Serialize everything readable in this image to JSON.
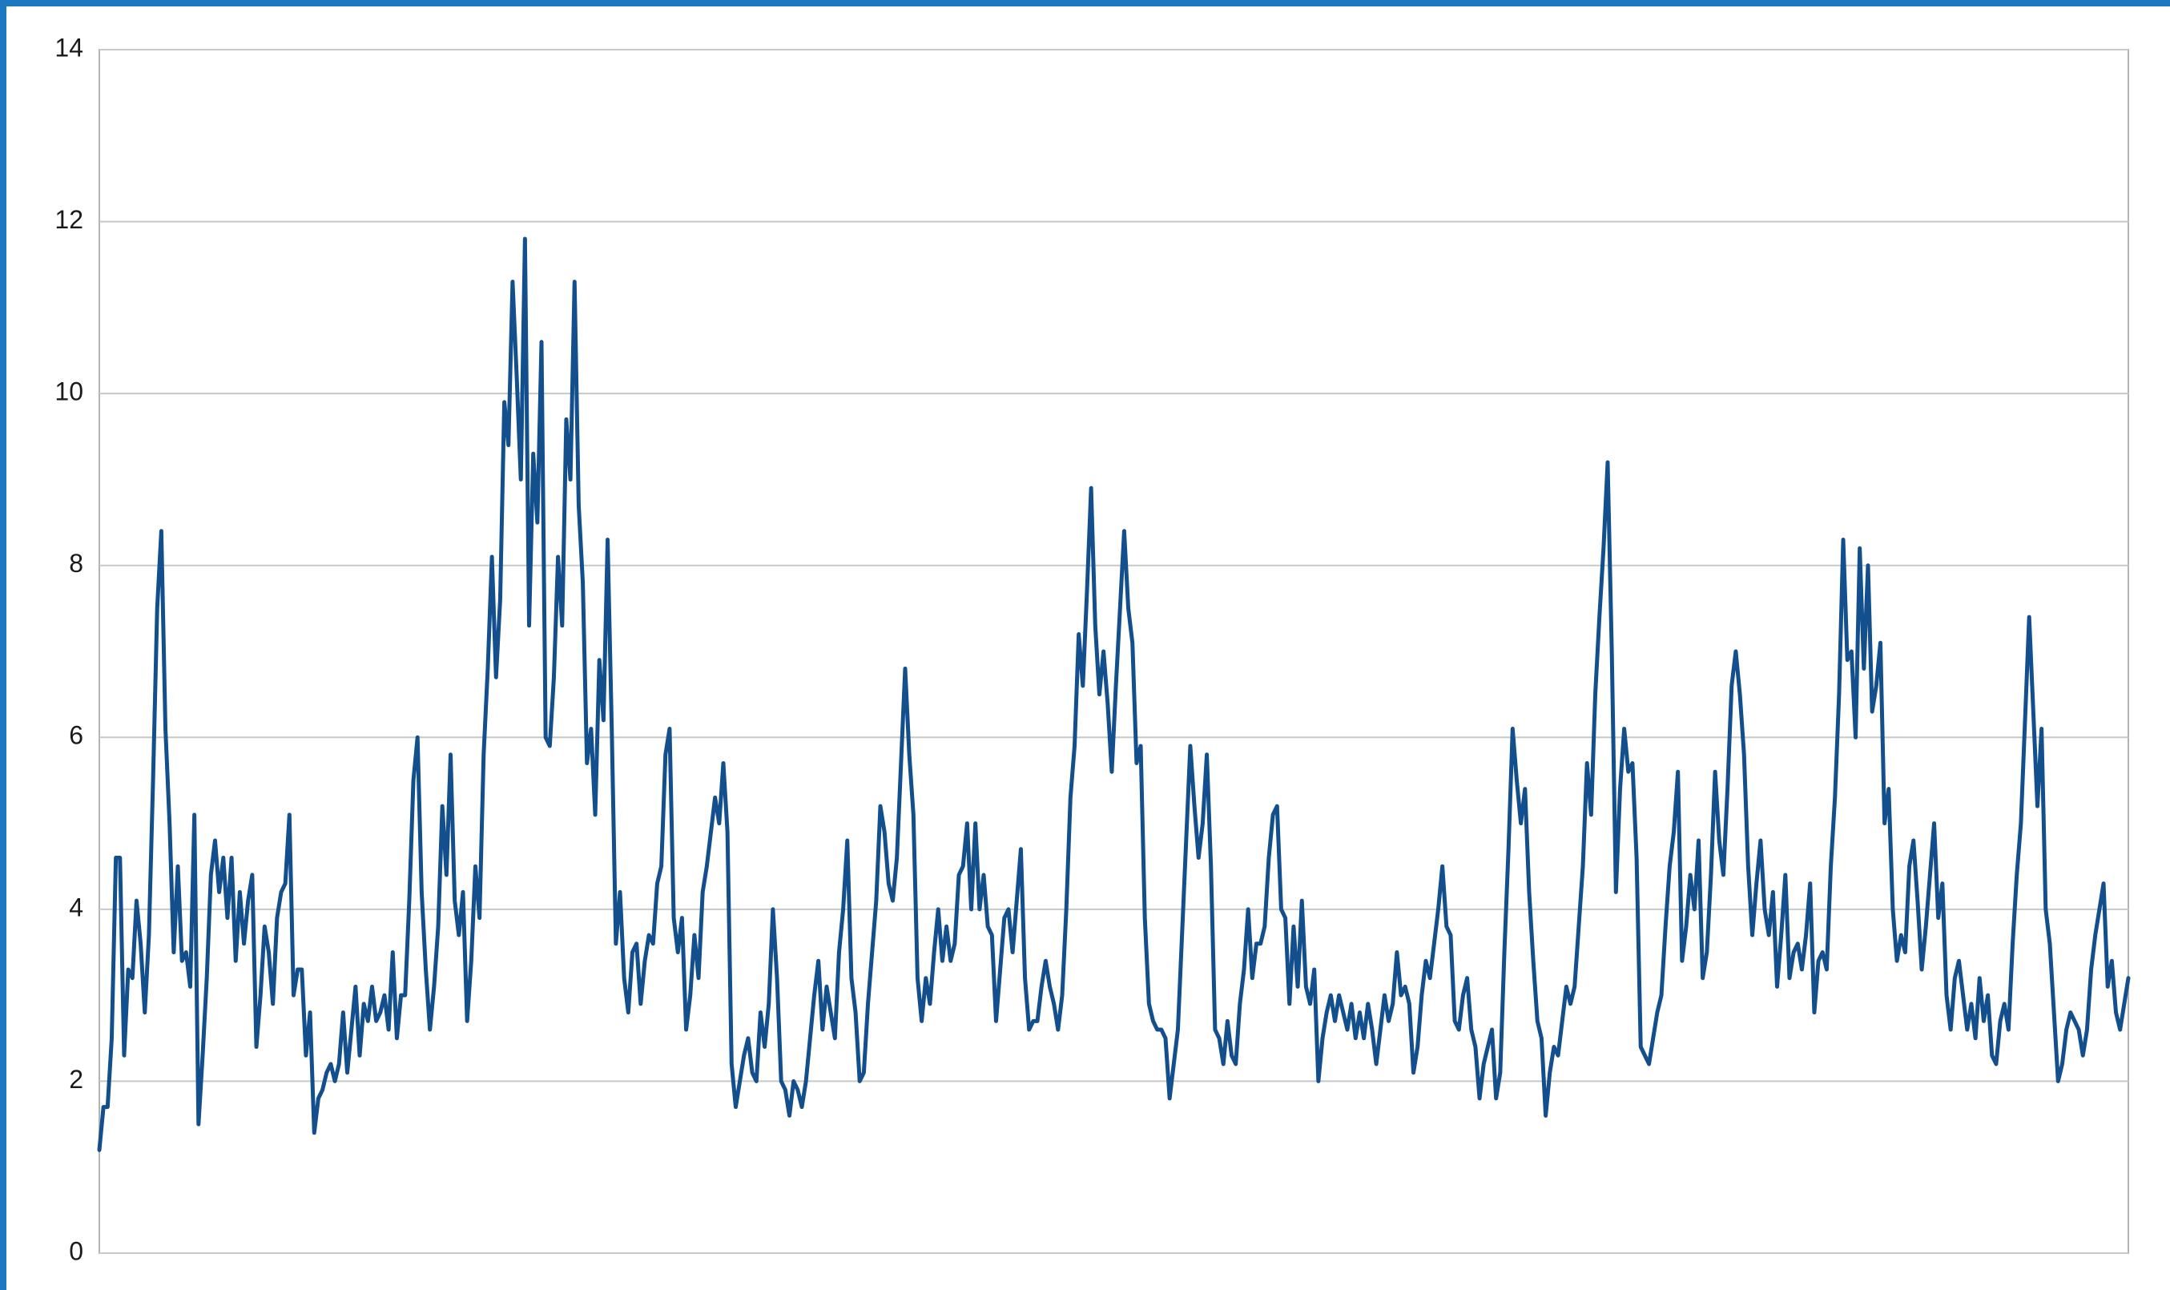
{
  "chart_data": {
    "type": "line",
    "color": "#124f8c",
    "grid": true,
    "ylim": [
      0,
      14
    ],
    "yticks": [
      0,
      2,
      4,
      6,
      8,
      10,
      12,
      14
    ],
    "values": [
      1.2,
      1.7,
      1.7,
      2.5,
      4.6,
      4.6,
      2.3,
      3.3,
      3.2,
      4.1,
      3.6,
      2.8,
      3.7,
      5.5,
      7.5,
      8.4,
      6.1,
      5,
      3.5,
      4.5,
      3.4,
      3.5,
      3.1,
      5.1,
      1.5,
      2.3,
      3.2,
      4.4,
      4.8,
      4.2,
      4.6,
      3.9,
      4.6,
      3.4,
      4.2,
      3.6,
      4.1,
      4.4,
      2.4,
      3.0,
      3.8,
      3.5,
      2.9,
      3.9,
      4.2,
      4.3,
      5.1,
      3.0,
      3.3,
      3.3,
      2.3,
      2.8,
      1.4,
      1.8,
      1.9,
      2.1,
      2.2,
      2.0,
      2.2,
      2.8,
      2.1,
      2.6,
      3.1,
      2.3,
      2.9,
      2.7,
      3.1,
      2.7,
      2.8,
      3.0,
      2.6,
      3.5,
      2.5,
      3.0,
      3.0,
      4.1,
      5.5,
      6.0,
      4.2,
      3.3,
      2.6,
      3.1,
      3.8,
      5.2,
      4.4,
      5.8,
      4.1,
      3.7,
      4.2,
      2.7,
      3.4,
      4.5,
      3.9,
      5.8,
      6.8,
      8.1,
      6.7,
      7.6,
      9.9,
      9.4,
      11.3,
      10.2,
      9.0,
      11.8,
      7.3,
      9.3,
      8.5,
      10.6,
      6.0,
      5.9,
      6.7,
      8.1,
      7.3,
      9.7,
      9.0,
      11.3,
      8.7,
      7.8,
      5.7,
      6.1,
      5.1,
      6.9,
      6.2,
      8.3,
      6.1,
      3.6,
      4.2,
      3.2,
      2.8,
      3.5,
      3.6,
      2.9,
      3.4,
      3.7,
      3.6,
      4.3,
      4.5,
      5.8,
      6.1,
      3.9,
      3.5,
      3.9,
      2.6,
      3.0,
      3.7,
      3.2,
      4.2,
      4.5,
      4.9,
      5.3,
      5.0,
      5.7,
      4.9,
      2.2,
      1.7,
      2.0,
      2.3,
      2.5,
      2.1,
      2.0,
      2.8,
      2.4,
      2.9,
      4.0,
      3.2,
      2.0,
      1.9,
      1.6,
      2.0,
      1.9,
      1.7,
      2.0,
      2.5,
      3.0,
      3.4,
      2.6,
      3.1,
      2.8,
      2.5,
      3.5,
      4.0,
      4.8,
      3.2,
      2.8,
      2.0,
      2.1,
      2.9,
      3.5,
      4.1,
      5.2,
      4.9,
      4.3,
      4.1,
      4.6,
      5.7,
      6.8,
      5.8,
      5.1,
      3.2,
      2.7,
      3.2,
      2.9,
      3.5,
      4.0,
      3.4,
      3.8,
      3.4,
      3.6,
      4.4,
      4.5,
      5.0,
      4.0,
      5.0,
      4.0,
      4.4,
      3.8,
      3.7,
      2.7,
      3.3,
      3.9,
      4.0,
      3.5,
      4.1,
      4.7,
      3.2,
      2.6,
      2.7,
      2.7,
      3.1,
      3.4,
      3.1,
      2.9,
      2.6,
      3.0,
      4.0,
      5.3,
      5.9,
      7.2,
      6.6,
      7.7,
      8.9,
      7.3,
      6.5,
      7.0,
      6.4,
      5.6,
      6.6,
      7.5,
      8.4,
      7.5,
      7.1,
      5.7,
      5.9,
      3.9,
      2.9,
      2.7,
      2.6,
      2.6,
      2.5,
      1.8,
      2.2,
      2.6,
      3.7,
      4.8,
      5.9,
      5.2,
      4.6,
      5.0,
      5.8,
      4.5,
      2.6,
      2.5,
      2.2,
      2.7,
      2.3,
      2.2,
      2.9,
      3.3,
      4.0,
      3.2,
      3.6,
      3.6,
      3.8,
      4.6,
      5.1,
      5.2,
      4.0,
      3.9,
      2.9,
      3.8,
      3.1,
      4.1,
      3.1,
      2.9,
      3.3,
      2.0,
      2.5,
      2.8,
      3.0,
      2.7,
      3.0,
      2.8,
      2.6,
      2.9,
      2.5,
      2.8,
      2.5,
      2.9,
      2.6,
      2.2,
      2.6,
      3.0,
      2.7,
      2.9,
      3.5,
      3.0,
      3.1,
      2.9,
      2.1,
      2.4,
      3.0,
      3.4,
      3.2,
      3.6,
      4.0,
      4.5,
      3.8,
      3.7,
      2.7,
      2.6,
      3.0,
      3.2,
      2.6,
      2.4,
      1.8,
      2.2,
      2.4,
      2.6,
      1.8,
      2.1,
      3.5,
      4.7,
      6.1,
      5.5,
      5.0,
      5.4,
      4.2,
      3.4,
      2.7,
      2.5,
      1.6,
      2.1,
      2.4,
      2.3,
      2.7,
      3.1,
      2.9,
      3.1,
      3.8,
      4.5,
      5.7,
      5.1,
      6.5,
      7.4,
      8.2,
      9.2,
      7.0,
      4.2,
      5.4,
      6.1,
      5.6,
      5.7,
      4.6,
      2.4,
      2.3,
      2.2,
      2.5,
      2.8,
      3.0,
      3.8,
      4.5,
      4.9,
      5.6,
      3.4,
      3.8,
      4.4,
      4.0,
      4.8,
      3.2,
      3.5,
      4.4,
      5.6,
      4.8,
      4.4,
      5.4,
      6.6,
      7.0,
      6.5,
      5.8,
      4.5,
      3.7,
      4.3,
      4.8,
      4.0,
      3.7,
      4.2,
      3.1,
      3.7,
      4.4,
      3.2,
      3.5,
      3.6,
      3.3,
      3.7,
      4.3,
      2.8,
      3.4,
      3.5,
      3.3,
      4.5,
      5.3,
      6.5,
      8.3,
      6.9,
      7.0,
      6.0,
      8.2,
      6.8,
      8.0,
      6.3,
      6.6,
      7.1,
      5.0,
      5.4,
      4.0,
      3.4,
      3.7,
      3.5,
      4.5,
      4.8,
      4.1,
      3.3,
      3.8,
      4.4,
      5.0,
      3.9,
      4.3,
      3.0,
      2.6,
      3.2,
      3.4,
      3.0,
      2.6,
      2.9,
      2.5,
      3.2,
      2.7,
      3.0,
      2.3,
      2.2,
      2.7,
      2.9,
      2.6,
      3.6,
      4.4,
      5.0,
      6.2,
      7.4,
      6.3,
      5.2,
      6.1,
      4.0,
      3.6,
      2.8,
      2.0,
      2.2,
      2.6,
      2.8,
      2.7,
      2.6,
      2.3,
      2.6,
      3.3,
      3.7,
      4.0,
      4.3,
      3.1,
      3.4,
      2.8,
      2.6,
      2.9,
      3.2
    ]
  }
}
